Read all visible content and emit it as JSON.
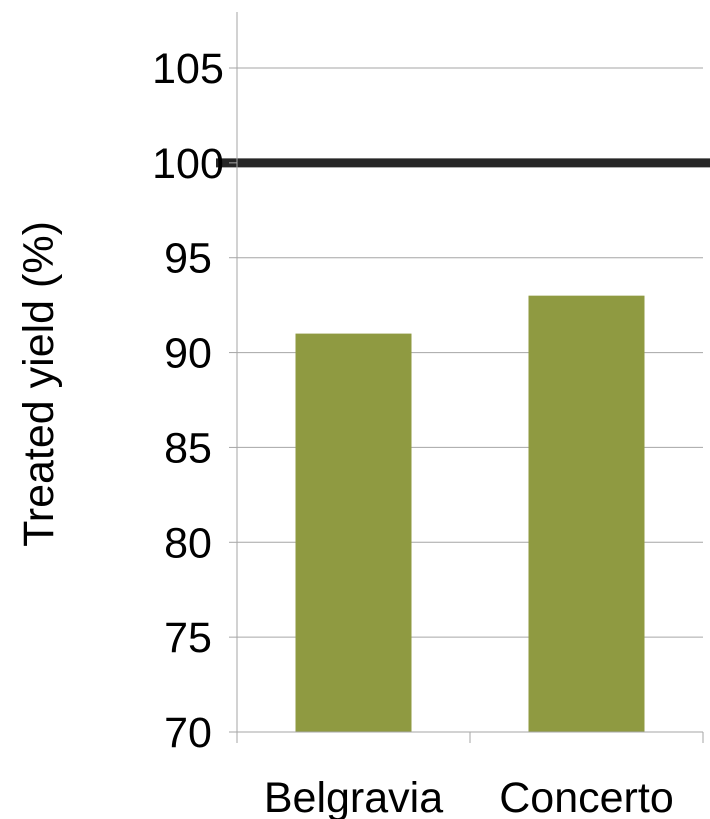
{
  "chart_data": {
    "type": "bar",
    "categories": [
      "Belgravia",
      "Concerto"
    ],
    "values": [
      91,
      93
    ],
    "title": "",
    "xlabel": "",
    "ylabel": "Treated yield (%)",
    "ylim": [
      70,
      107
    ],
    "yticks": [
      70,
      75,
      80,
      85,
      90,
      95,
      100,
      105
    ],
    "reference_line": 100,
    "grid": true,
    "legend": "none",
    "colors": {
      "bar": "#8f9a41",
      "reference_line": "#262626",
      "grid": "#a6a6a6",
      "axis": "#a6a6a6"
    }
  }
}
